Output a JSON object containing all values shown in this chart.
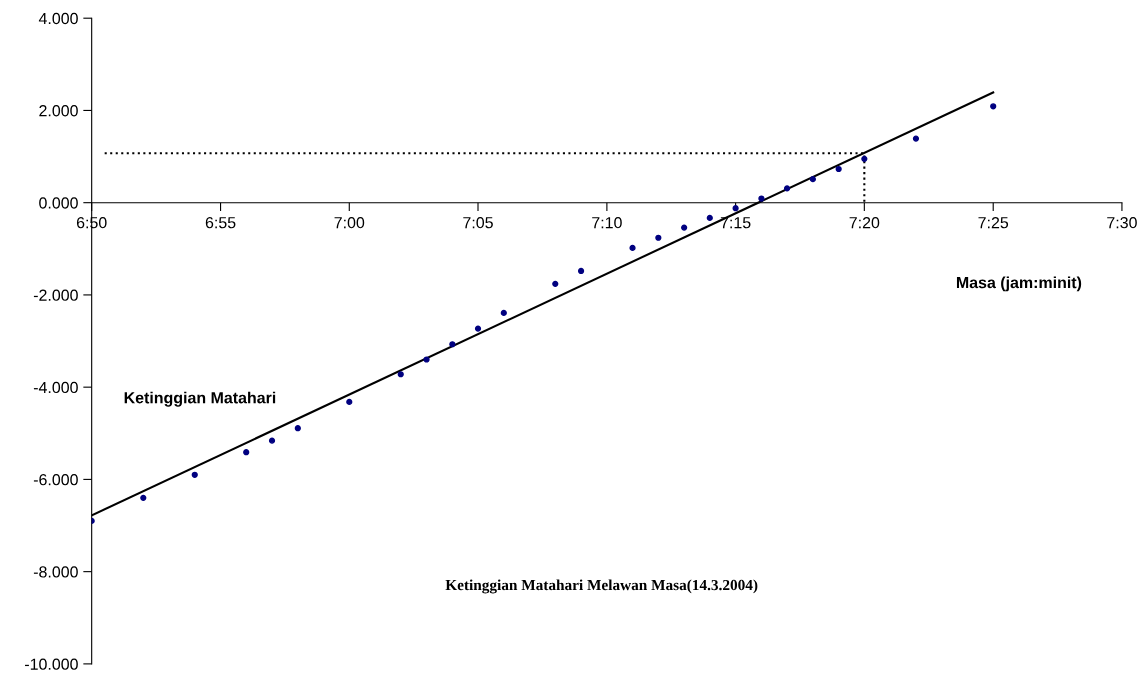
{
  "chart_data": {
    "type": "scatter",
    "title": "Ketinggian Matahari Melawan Masa(14.3.2004)",
    "xlabel": "Masa (jam:minit)",
    "ylabel": "Ketinggian Matahari",
    "series": [
      {
        "color": "#000080",
        "marker": "circle",
        "x": [
          6.8333,
          6.8667,
          6.9,
          6.9333,
          6.95,
          6.9667,
          7.0,
          7.0333,
          7.05,
          7.0667,
          7.0833,
          7.1,
          7.1333,
          7.15,
          7.1833,
          7.2,
          7.2167,
          7.2333,
          7.25,
          7.2667,
          7.2833,
          7.3,
          7.3167,
          7.3333,
          7.3667,
          7.4167
        ],
        "values": [
          -6.9,
          -6.4,
          -5.9,
          -5.41,
          -5.16,
          -4.89,
          -4.32,
          -3.72,
          -3.4,
          -3.07,
          -2.73,
          -2.39,
          -1.76,
          -1.48,
          -0.98,
          -0.76,
          -0.54,
          -0.33,
          -0.12,
          0.09,
          0.31,
          0.51,
          0.73,
          0.95,
          1.39,
          2.09
        ]
      },
      {
        "type": "line",
        "color": "#000000",
        "line_style": "solid",
        "x": [
          6.8333,
          7.4167
        ],
        "values": [
          -6.78,
          2.39
        ]
      },
      {
        "type": "line",
        "color": "#000000",
        "line_style": "dotted",
        "x": [
          6.8417,
          7.3333,
          7.3333
        ],
        "values": [
          1.07,
          1.07,
          0
        ]
      }
    ],
    "xlim": [
      6.8333,
      7.5
    ],
    "xticks": [
      {
        "value": 6.8333,
        "label": "6:50"
      },
      {
        "value": 6.9167,
        "label": "6:55"
      },
      {
        "value": 7.0,
        "label": "7:00"
      },
      {
        "value": 7.0833,
        "label": "7:05"
      },
      {
        "value": 7.1667,
        "label": "7:10"
      },
      {
        "value": 7.25,
        "label": "7:15"
      },
      {
        "value": 7.3333,
        "label": "7:20"
      },
      {
        "value": 7.4167,
        "label": "7:25"
      },
      {
        "value": 7.5,
        "label": "7:30"
      }
    ],
    "ylim": [
      -10,
      4
    ],
    "yticks": [
      {
        "value": -10,
        "label": "-10.000"
      },
      {
        "value": -8,
        "label": "-8.000"
      },
      {
        "value": -6,
        "label": "-6.000"
      },
      {
        "value": -4,
        "label": "-4.000"
      },
      {
        "value": -2,
        "label": "-2.000"
      },
      {
        "value": 0,
        "label": "0.000"
      },
      {
        "value": 2,
        "label": "2.000"
      },
      {
        "value": 4,
        "label": "4.000"
      }
    ],
    "grid": false,
    "legend": false
  }
}
